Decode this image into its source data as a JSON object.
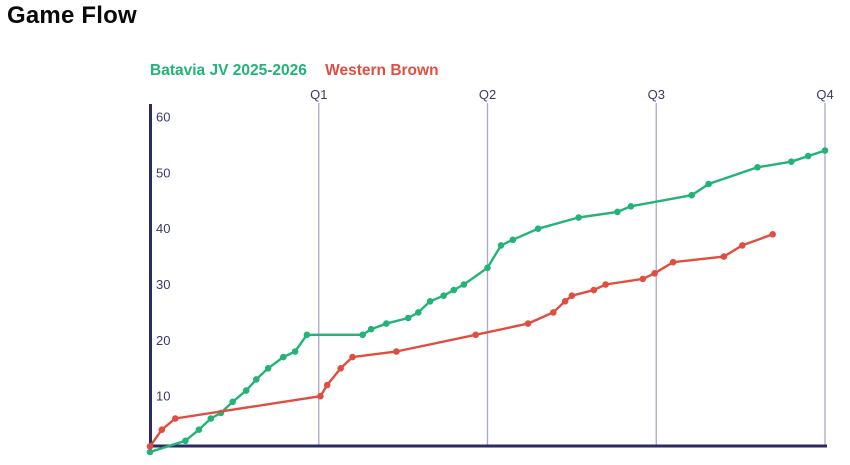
{
  "page": {
    "title": "Game Flow"
  },
  "legend": {
    "items": [
      {
        "label": "Batavia JV 2025-2026",
        "color": "#22b377"
      },
      {
        "label": "Western Brown",
        "color": "#e04e41"
      }
    ]
  },
  "chart_data": {
    "type": "line",
    "title": "Game Flow",
    "xlabel": "",
    "ylabel": "",
    "x_ticks": [
      "Q1",
      "Q2",
      "Q3",
      "Q4"
    ],
    "x_tick_positions": [
      1,
      2,
      3,
      4
    ],
    "xlim": [
      0,
      4
    ],
    "y_ticks": [
      10,
      20,
      30,
      40,
      50,
      60
    ],
    "ylim": [
      0,
      60
    ],
    "grid": "vertical quarter gridlines",
    "legend_position": "top-left",
    "axis_color": "#2b2b66",
    "grid_color": "#a9a9c7",
    "label_color": "#39396f",
    "series": [
      {
        "name": "Batavia JV 2025-2026",
        "color": "#22b377",
        "points": [
          [
            0.0,
            0
          ],
          [
            0.21,
            2
          ],
          [
            0.29,
            4
          ],
          [
            0.36,
            6
          ],
          [
            0.42,
            7
          ],
          [
            0.49,
            9
          ],
          [
            0.57,
            11
          ],
          [
            0.63,
            13
          ],
          [
            0.7,
            15
          ],
          [
            0.79,
            17
          ],
          [
            0.86,
            18
          ],
          [
            0.93,
            21
          ],
          [
            1.26,
            21
          ],
          [
            1.31,
            22
          ],
          [
            1.4,
            23
          ],
          [
            1.53,
            24
          ],
          [
            1.59,
            25
          ],
          [
            1.66,
            27
          ],
          [
            1.74,
            28
          ],
          [
            1.8,
            29
          ],
          [
            1.86,
            30
          ],
          [
            2.0,
            33
          ],
          [
            2.08,
            37
          ],
          [
            2.15,
            38
          ],
          [
            2.3,
            40
          ],
          [
            2.54,
            42
          ],
          [
            2.77,
            43
          ],
          [
            2.85,
            44
          ],
          [
            3.21,
            46
          ],
          [
            3.31,
            48
          ],
          [
            3.6,
            51
          ],
          [
            3.8,
            52
          ],
          [
            3.9,
            53
          ],
          [
            4.0,
            54
          ]
        ]
      },
      {
        "name": "Western Brown",
        "color": "#e04e41",
        "points": [
          [
            0.0,
            1
          ],
          [
            0.07,
            4
          ],
          [
            0.15,
            6
          ],
          [
            1.01,
            10
          ],
          [
            1.05,
            12
          ],
          [
            1.13,
            15
          ],
          [
            1.2,
            17
          ],
          [
            1.46,
            18
          ],
          [
            1.93,
            21
          ],
          [
            2.24,
            23
          ],
          [
            2.39,
            25
          ],
          [
            2.46,
            27
          ],
          [
            2.5,
            28
          ],
          [
            2.63,
            29
          ],
          [
            2.7,
            30
          ],
          [
            2.92,
            31
          ],
          [
            2.99,
            32
          ],
          [
            3.1,
            34
          ],
          [
            3.4,
            35
          ],
          [
            3.51,
            37
          ],
          [
            3.69,
            39
          ]
        ]
      }
    ]
  }
}
